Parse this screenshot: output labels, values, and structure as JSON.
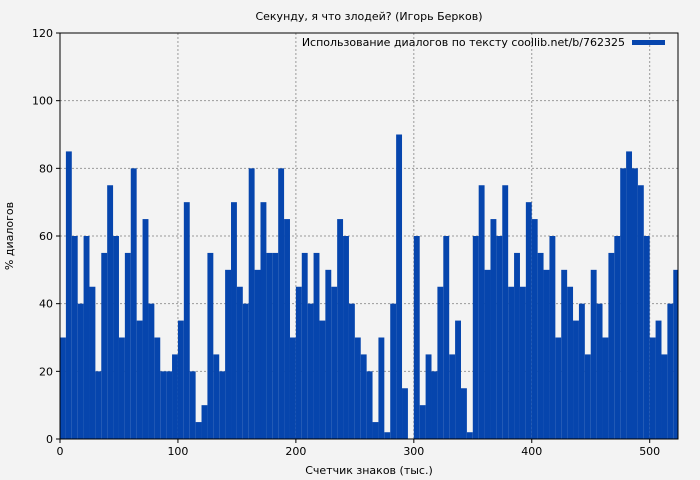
{
  "chart_data": {
    "type": "bar",
    "title": "Секунду, я что злодей? (Игорь Берков)",
    "xlabel": "Счетчик знаков (тыс.)",
    "ylabel": "% диалогов",
    "legend": {
      "label": "Использование диалогов по тексту coollib.net/b/762325",
      "placement": "top-right"
    },
    "xlim": [
      0,
      524
    ],
    "ylim": [
      0,
      120
    ],
    "xticks": [
      0,
      100,
      200,
      300,
      400,
      500
    ],
    "yticks": [
      0,
      20,
      40,
      60,
      80,
      100,
      120
    ],
    "grid": true,
    "bin_width": 5,
    "x": [
      0,
      5,
      10,
      15,
      20,
      25,
      30,
      35,
      40,
      45,
      50,
      55,
      60,
      65,
      70,
      75,
      80,
      85,
      90,
      95,
      100,
      105,
      110,
      115,
      120,
      125,
      130,
      135,
      140,
      145,
      150,
      155,
      160,
      165,
      170,
      175,
      180,
      185,
      190,
      195,
      200,
      205,
      210,
      215,
      220,
      225,
      230,
      235,
      240,
      245,
      250,
      255,
      260,
      265,
      270,
      275,
      280,
      285,
      290,
      295,
      300,
      305,
      310,
      315,
      320,
      325,
      330,
      335,
      340,
      345,
      350,
      355,
      360,
      365,
      370,
      375,
      380,
      385,
      390,
      395,
      400,
      405,
      410,
      415,
      420,
      425,
      430,
      435,
      440,
      445,
      450,
      455,
      460,
      465,
      470,
      475,
      480,
      485,
      490,
      495,
      500,
      505,
      510,
      515,
      520
    ],
    "values": [
      30,
      85,
      60,
      40,
      60,
      45,
      20,
      55,
      75,
      60,
      30,
      55,
      80,
      35,
      65,
      40,
      30,
      20,
      20,
      25,
      35,
      70,
      20,
      5,
      10,
      55,
      25,
      20,
      50,
      70,
      45,
      40,
      80,
      50,
      70,
      55,
      55,
      80,
      65,
      30,
      45,
      55,
      40,
      55,
      35,
      50,
      45,
      65,
      60,
      40,
      30,
      25,
      20,
      5,
      30,
      2,
      40,
      90,
      15,
      0,
      60,
      10,
      25,
      20,
      45,
      60,
      25,
      35,
      15,
      2,
      60,
      75,
      50,
      65,
      60,
      75,
      45,
      55,
      45,
      70,
      65,
      55,
      50,
      60,
      30,
      50,
      45,
      35,
      40,
      25,
      50,
      40,
      30,
      55,
      60,
      80,
      85,
      80,
      75,
      60,
      30,
      35,
      25,
      40,
      50
    ],
    "colors": {
      "bar": "#0645ad",
      "grid": "#9a9a9a",
      "background": "#f3f3f3"
    }
  }
}
